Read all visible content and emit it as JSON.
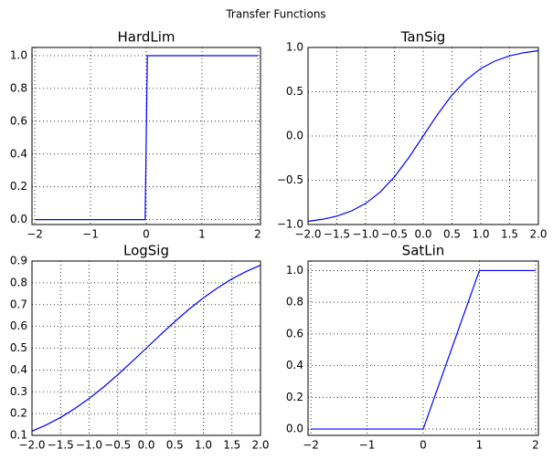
{
  "title": "Transfer Functions",
  "chart_data": [
    {
      "type": "line",
      "title": "HardLim",
      "color": "#0000ff",
      "grid": true,
      "x": [
        -2,
        -1,
        -0.02,
        0.02,
        1,
        2
      ],
      "values": [
        0,
        0,
        0,
        1,
        1,
        1
      ],
      "xlim": [
        -2.05,
        2.05
      ],
      "ylim": [
        -0.03,
        1.05
      ],
      "xticks": [
        {
          "value": -2,
          "label": "−2"
        },
        {
          "value": -1,
          "label": "−1"
        },
        0,
        1,
        2
      ],
      "yticks": [
        {
          "value": 0,
          "label": "0.0"
        },
        0.2,
        0.4,
        0.6,
        0.8,
        {
          "value": 1,
          "label": "1.0"
        }
      ]
    },
    {
      "type": "line",
      "title": "TanSig",
      "color": "#0000ff",
      "grid": true,
      "x": [
        -2,
        -1.75,
        -1.5,
        -1.25,
        -1,
        -0.75,
        -0.5,
        -0.25,
        0,
        0.25,
        0.5,
        0.75,
        1,
        1.25,
        1.5,
        1.75,
        2
      ],
      "values": [
        -0.964,
        -0.941,
        -0.905,
        -0.848,
        -0.762,
        -0.635,
        -0.462,
        -0.245,
        0,
        0.245,
        0.462,
        0.635,
        0.762,
        0.848,
        0.905,
        0.941,
        0.964
      ],
      "xlim": [
        -2,
        2
      ],
      "ylim": [
        -1,
        1
      ],
      "xticks": [
        {
          "value": -2,
          "label": "−2.0"
        },
        {
          "value": -1.5,
          "label": "−1.5"
        },
        {
          "value": -1,
          "label": "−1.0"
        },
        {
          "value": -0.5,
          "label": "−0.5"
        },
        {
          "value": 0,
          "label": "0.0"
        },
        0.5,
        {
          "value": 1,
          "label": "1.0"
        },
        1.5,
        {
          "value": 2,
          "label": "2.0"
        }
      ],
      "yticks": [
        {
          "value": -1,
          "label": "−1.0"
        },
        {
          "value": -0.5,
          "label": "−0.5"
        },
        {
          "value": 0,
          "label": "0.0"
        },
        0.5,
        {
          "value": 1,
          "label": "1.0"
        }
      ]
    },
    {
      "type": "line",
      "title": "LogSig",
      "color": "#0000ff",
      "grid": true,
      "x": [
        -2,
        -1.75,
        -1.5,
        -1.25,
        -1,
        -0.75,
        -0.5,
        -0.25,
        0,
        0.25,
        0.5,
        0.75,
        1,
        1.25,
        1.5,
        1.75,
        2
      ],
      "values": [
        0.119,
        0.148,
        0.182,
        0.223,
        0.269,
        0.321,
        0.378,
        0.438,
        0.5,
        0.562,
        0.622,
        0.679,
        0.731,
        0.777,
        0.818,
        0.852,
        0.881
      ],
      "xlim": [
        -2,
        2
      ],
      "ylim": [
        0.1,
        0.9
      ],
      "xticks": [
        {
          "value": -2,
          "label": "−2.0"
        },
        {
          "value": -1.5,
          "label": "−1.5"
        },
        {
          "value": -1,
          "label": "−1.0"
        },
        {
          "value": -0.5,
          "label": "−0.5"
        },
        {
          "value": 0,
          "label": "0.0"
        },
        0.5,
        {
          "value": 1,
          "label": "1.0"
        },
        1.5,
        {
          "value": 2,
          "label": "2.0"
        }
      ],
      "yticks": [
        0.1,
        0.2,
        0.3,
        0.4,
        0.5,
        0.6,
        0.7,
        0.8,
        0.9
      ]
    },
    {
      "type": "line",
      "title": "SatLin",
      "color": "#0000ff",
      "grid": true,
      "x": [
        -2,
        0,
        1,
        2
      ],
      "values": [
        0,
        0,
        1,
        1
      ],
      "xlim": [
        -2.05,
        2.05
      ],
      "ylim": [
        -0.04,
        1.06
      ],
      "xticks": [
        {
          "value": -2,
          "label": "−2"
        },
        {
          "value": -1,
          "label": "−1"
        },
        0,
        1,
        2
      ],
      "yticks": [
        {
          "value": 0,
          "label": "0.0"
        },
        0.2,
        0.4,
        0.6,
        0.8,
        {
          "value": 1,
          "label": "1.0"
        }
      ]
    }
  ]
}
